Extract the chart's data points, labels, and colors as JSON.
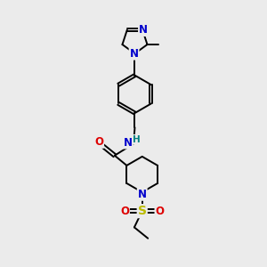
{
  "background_color": "#ebebeb",
  "bond_color": "#000000",
  "N_color": "#0000cc",
  "O_color": "#dd0000",
  "S_color": "#bbbb00",
  "H_color": "#008080",
  "font_size": 8.5,
  "line_width": 1.4,
  "figsize": [
    3.0,
    3.0
  ],
  "dpi": 100,
  "xlim": [
    0,
    10
  ],
  "ylim": [
    0,
    10
  ]
}
